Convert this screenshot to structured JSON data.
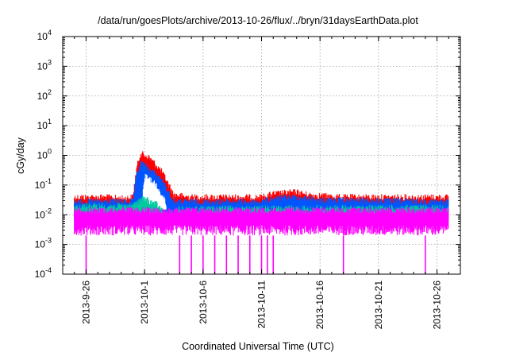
{
  "chart_data": {
    "type": "line",
    "title": "/data/run/goesPlots/archive/2013-10-26/flux/../bryn/31daysEarthData.plot",
    "xlabel": "Coordinated Universal Time (UTC)",
    "ylabel": "cGy/day",
    "y_scale": "log",
    "ylim": [
      0.0001,
      10000
    ],
    "xlim": [
      "2013-09-24",
      "2013-10-28"
    ],
    "grid": true,
    "legend": "none",
    "x_ticks": [
      "2013-9-26",
      "2013-10-1",
      "2013-10-6",
      "2013-10-11",
      "2013-10-16",
      "2013-10-21",
      "2013-10-26"
    ],
    "y_ticks": [
      {
        "base": "10",
        "exp": "-4",
        "value": 0.0001
      },
      {
        "base": "10",
        "exp": "-3",
        "value": 0.001
      },
      {
        "base": "10",
        "exp": "-2",
        "value": 0.01
      },
      {
        "base": "10",
        "exp": "-1",
        "value": 0.1
      },
      {
        "base": "10",
        "exp": "0",
        "value": 1
      },
      {
        "base": "10",
        "exp": "1",
        "value": 10
      },
      {
        "base": "10",
        "exp": "2",
        "value": 100
      },
      {
        "base": "10",
        "exp": "3",
        "value": 1000
      },
      {
        "base": "10",
        "exp": "4",
        "value": 10000
      }
    ],
    "series": [
      {
        "color": "#ff0000",
        "upper": [
          {
            "x": "2013-09-25",
            "y": 0.05
          },
          {
            "x": "2013-09-28",
            "y": 0.05
          },
          {
            "x": "2013-09-29",
            "y": 0.045
          },
          {
            "x": "2013-09-30",
            "y": 0.05
          },
          {
            "x": "2013-09-30T08:00",
            "y": 0.5
          },
          {
            "x": "2013-09-30T16:00",
            "y": 1.5
          },
          {
            "x": "2013-10-01",
            "y": 1.3
          },
          {
            "x": "2013-10-01T12:00",
            "y": 1.0
          },
          {
            "x": "2013-10-02",
            "y": 0.6
          },
          {
            "x": "2013-10-02T12:00",
            "y": 0.35
          },
          {
            "x": "2013-10-03",
            "y": 0.15
          },
          {
            "x": "2013-10-03T12:00",
            "y": 0.06
          },
          {
            "x": "2013-10-05",
            "y": 0.05
          },
          {
            "x": "2013-10-11",
            "y": 0.05
          },
          {
            "x": "2013-10-12",
            "y": 0.065
          },
          {
            "x": "2013-10-14",
            "y": 0.075
          },
          {
            "x": "2013-10-15",
            "y": 0.06
          },
          {
            "x": "2013-10-18",
            "y": 0.05
          },
          {
            "x": "2013-10-27",
            "y": 0.05
          }
        ]
      },
      {
        "color": "#0055ff",
        "upper": [
          {
            "x": "2013-09-25",
            "y": 0.035
          },
          {
            "x": "2013-09-30",
            "y": 0.035
          },
          {
            "x": "2013-09-30T08:00",
            "y": 0.3
          },
          {
            "x": "2013-09-30T16:00",
            "y": 0.7
          },
          {
            "x": "2013-10-01",
            "y": 0.6
          },
          {
            "x": "2013-10-01T12:00",
            "y": 0.4
          },
          {
            "x": "2013-10-02",
            "y": 0.3
          },
          {
            "x": "2013-10-02T12:00",
            "y": 0.18
          },
          {
            "x": "2013-10-03",
            "y": 0.08
          },
          {
            "x": "2013-10-03T12:00",
            "y": 0.035
          },
          {
            "x": "2013-10-11",
            "y": 0.035
          },
          {
            "x": "2013-10-12",
            "y": 0.045
          },
          {
            "x": "2013-10-14",
            "y": 0.05
          },
          {
            "x": "2013-10-16",
            "y": 0.04
          },
          {
            "x": "2013-10-27",
            "y": 0.035
          }
        ]
      },
      {
        "color": "#ffffff",
        "upper": [
          {
            "x": "2013-09-30T20:00",
            "y": 0.05
          },
          {
            "x": "2013-10-01",
            "y": 0.25
          },
          {
            "x": "2013-10-01T12:00",
            "y": 0.2
          },
          {
            "x": "2013-10-02",
            "y": 0.12
          },
          {
            "x": "2013-10-02T12:00",
            "y": 0.06
          },
          {
            "x": "2013-10-02T20:00",
            "y": 0.03
          }
        ]
      },
      {
        "color": "#00c8a0",
        "upper": [
          {
            "x": "2013-09-25",
            "y": 0.025
          },
          {
            "x": "2013-09-30",
            "y": 0.025
          },
          {
            "x": "2013-09-30T12:00",
            "y": 0.04
          },
          {
            "x": "2013-10-01",
            "y": 0.045
          },
          {
            "x": "2013-10-01T12:00",
            "y": 0.035
          },
          {
            "x": "2013-10-02",
            "y": 0.03
          },
          {
            "x": "2013-10-02T12:00",
            "y": 0.018
          },
          {
            "x": "2013-10-03",
            "y": 0.012
          },
          {
            "x": "2013-10-04",
            "y": 0.02
          },
          {
            "x": "2013-10-27",
            "y": 0.022
          }
        ]
      },
      {
        "color": "#ff00ff",
        "upper": [
          {
            "x": "2013-09-25",
            "y": 0.018
          },
          {
            "x": "2013-10-27",
            "y": 0.018
          }
        ],
        "lower": 0.002,
        "dropouts": [
          "2013-09-26",
          "2013-10-04",
          "2013-10-05",
          "2013-10-06",
          "2013-10-07",
          "2013-10-08",
          "2013-10-09",
          "2013-10-10",
          "2013-10-11",
          "2013-10-11T12:00",
          "2013-10-12",
          "2013-10-18",
          "2013-10-25"
        ]
      }
    ]
  }
}
